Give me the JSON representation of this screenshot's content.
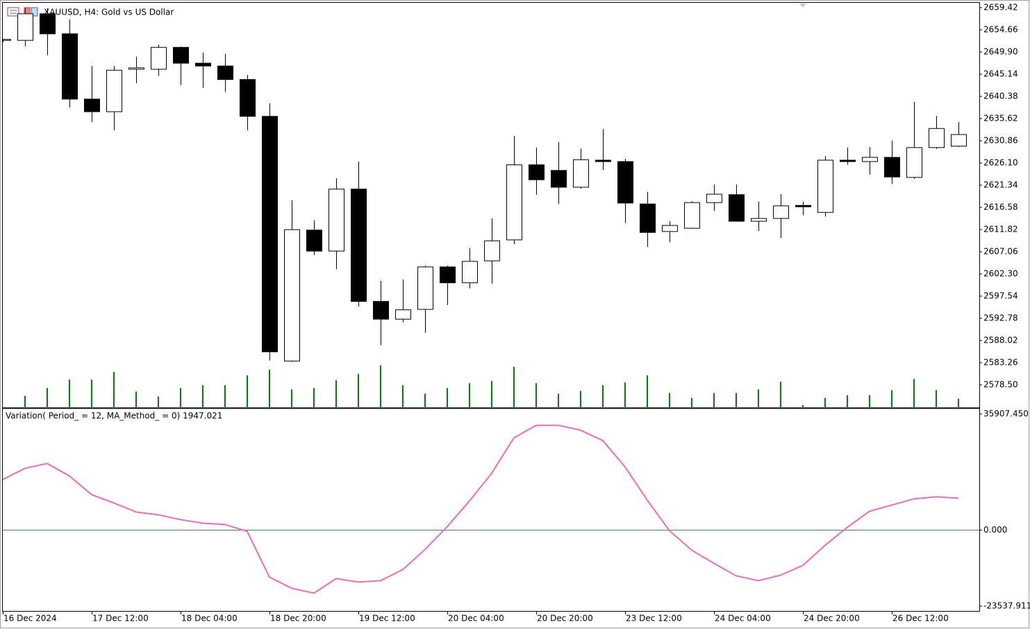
{
  "chart_data": [
    {
      "type": "candlestick",
      "title": "XAUUSD, H4:  Gold vs US Dollar",
      "categories": [
        "16 Dec 2024",
        null,
        null,
        null,
        "17 Dec 12:00",
        null,
        null,
        null,
        "18 Dec 04:00",
        null,
        null,
        null,
        "18 Dec 20:00",
        null,
        null,
        null,
        "19 Dec 12:00",
        null,
        null,
        null,
        "20 Dec 04:00",
        null,
        null,
        null,
        "20 Dec 20:00",
        null,
        null,
        null,
        "23 Dec 12:00",
        null,
        null,
        null,
        "24 Dec 04:00",
        null,
        null,
        null,
        "24 Dec 20:00",
        null,
        null,
        null,
        "26 Dec 12:00",
        null,
        null,
        null
      ],
      "open": [
        2652.4,
        2652.4,
        2658.1,
        2653.8,
        2639.8,
        2637.1,
        2646.2,
        2646.2,
        2650.9,
        2647.5,
        2646.9,
        2644.0,
        2636.1,
        2583.6,
        2611.7,
        2607.2,
        2620.5,
        2596.4,
        2592.6,
        2594.7,
        2603.8,
        2600.4,
        2605.1,
        2609.6,
        2625.7,
        2624.5,
        2620.9,
        2626.7,
        2626.4,
        2617.3,
        2611.4,
        2612.1,
        2617.6,
        2619.3,
        2613.6,
        2614.2,
        2617.0,
        2615.5,
        2626.7,
        2626.4,
        2627.3,
        2623.0,
        2629.4,
        2629.7
      ],
      "high": [
        2652.7,
        2659.3,
        2659.3,
        2656.9,
        2646.9,
        2646.9,
        2648.9,
        2651.5,
        2651.1,
        2649.8,
        2649.5,
        2645.0,
        2638.9,
        2618.1,
        2613.8,
        2622.8,
        2626.4,
        2600.8,
        2601.1,
        2604.1,
        2604.1,
        2607.8,
        2614.2,
        2631.9,
        2629.4,
        2630.6,
        2629.2,
        2633.4,
        2627.0,
        2619.9,
        2613.6,
        2617.9,
        2621.5,
        2621.5,
        2617.8,
        2619.4,
        2617.8,
        2627.6,
        2629.4,
        2629.5,
        2630.9,
        2639.2,
        2636.2,
        2634.9
      ],
      "low": [
        2652.0,
        2651.1,
        2649.2,
        2638.0,
        2634.9,
        2633.1,
        2643.2,
        2644.8,
        2642.8,
        2642.2,
        2641.3,
        2633.1,
        2583.7,
        2583.4,
        2606.3,
        2603.3,
        2595.3,
        2587.0,
        2591.9,
        2589.7,
        2595.6,
        2599.2,
        2600.2,
        2608.7,
        2619.3,
        2617.3,
        2620.6,
        2624.6,
        2613.2,
        2608.1,
        2609.1,
        2612.0,
        2615.8,
        2613.5,
        2611.5,
        2610.0,
        2614.9,
        2614.6,
        2625.7,
        2623.6,
        2621.6,
        2622.7,
        2629.1,
        2629.5
      ],
      "close": [
        2652.6,
        2658.1,
        2653.8,
        2639.8,
        2637.1,
        2646.0,
        2646.5,
        2650.9,
        2647.5,
        2646.9,
        2644.0,
        2636.1,
        2585.6,
        2611.8,
        2607.2,
        2620.5,
        2596.4,
        2592.6,
        2594.6,
        2603.8,
        2600.4,
        2605.0,
        2609.4,
        2625.7,
        2622.5,
        2620.9,
        2626.8,
        2626.4,
        2617.5,
        2611.2,
        2612.7,
        2617.6,
        2619.4,
        2613.6,
        2614.2,
        2616.9,
        2616.7,
        2626.7,
        2626.4,
        2627.3,
        2623.1,
        2629.4,
        2633.5,
        2632.2
      ],
      "volume": [
        null,
        16,
        27,
        39,
        39,
        50,
        22,
        15,
        27,
        31,
        31,
        45,
        53,
        25,
        27,
        38,
        47,
        59,
        31,
        19,
        27,
        34,
        37,
        57,
        34,
        19,
        23,
        31,
        35,
        45,
        20,
        13,
        20,
        20,
        25,
        36,
        3,
        13,
        17,
        17,
        24,
        40,
        24,
        12
      ],
      "volume_color": "#008000",
      "up_color": "#ffffff",
      "down_color": "#000000",
      "wick_color": "#000000",
      "ylim": [
        2573.74,
        2660.46
      ],
      "yticks": [
        2659.42,
        2654.66,
        {
          "value": 2649.9,
          "label": "2649.90"
        },
        2645.14,
        2640.38,
        2635.62,
        2630.86,
        {
          "value": 2626.1,
          "label": "2626.10"
        },
        2621.34,
        2616.58,
        2611.82,
        2607.06,
        {
          "value": 2602.3,
          "label": "2602.30"
        },
        2597.54,
        2592.78,
        2588.02,
        2583.26,
        {
          "value": 2578.5,
          "label": "2578.50"
        }
      ]
    },
    {
      "type": "line",
      "title": "Variation( Period_ = 12, MA_Method_ = 0) 1947.021",
      "values": [
        15666,
        19099,
        20602,
        16739,
        10945,
        8369,
        5580,
        4721,
        3219,
        2146,
        1717,
        -429,
        -14593,
        -18026,
        -19529,
        -15022,
        -16095,
        -15666,
        -12232,
        -6009,
        1073,
        9013,
        17597,
        28542,
        32405,
        32405,
        30902,
        27683,
        19529,
        9228,
        -215,
        -6223,
        -10301,
        -14164,
        -15666,
        -13949,
        -10945,
        -4721,
        858,
        5794,
        7726,
        9657,
        10301,
        9872
      ],
      "color": "#f06ab4",
      "levels": [
        0
      ],
      "level_color": "#2e8b2e",
      "ylim": [
        -23537.911,
        35907.45
      ],
      "yticks": [
        {
          "value": 35907.45,
          "label": "35907.450"
        },
        {
          "value": 0,
          "label": "0.000"
        },
        {
          "value": -23537.911,
          "label": "-23537.911"
        }
      ]
    }
  ]
}
